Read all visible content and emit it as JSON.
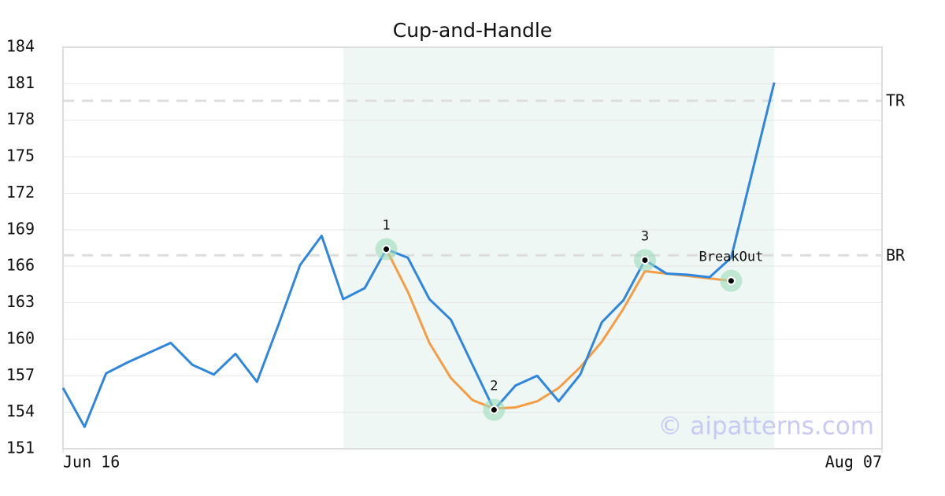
{
  "chart_data": {
    "type": "line",
    "title": "Cup-and-Handle",
    "x": [
      0,
      1,
      2,
      3,
      4,
      5,
      6,
      7,
      8,
      9,
      10,
      11,
      12,
      13,
      14,
      15,
      16,
      17,
      18,
      19,
      20,
      21,
      22,
      23,
      24,
      25,
      26,
      27,
      28,
      29,
      30,
      31,
      32,
      33
    ],
    "xlim": [
      0,
      38
    ],
    "xticks": [
      {
        "value": 0,
        "label": "Jun 16"
      },
      {
        "value": 38,
        "label": "Aug 07"
      }
    ],
    "ylim": [
      151,
      184
    ],
    "yticks": [
      151,
      154,
      157,
      160,
      163,
      166,
      169,
      172,
      175,
      178,
      181,
      184
    ],
    "grid": true,
    "series": [
      {
        "color": "#2e86de",
        "values": [
          156.0,
          152.8,
          157.2,
          158.1,
          158.9,
          159.7,
          157.9,
          157.1,
          158.8,
          156.5,
          161.2,
          166.1,
          168.5,
          163.3,
          164.2,
          167.4,
          166.7,
          163.3,
          161.6,
          157.9,
          154.2,
          156.2,
          157.0,
          154.9,
          157.1,
          161.4,
          163.2,
          166.5,
          165.4,
          165.3,
          165.1,
          166.7,
          173.9,
          181.1
        ]
      },
      {
        "color": "#f59c45",
        "values": [
          null,
          null,
          null,
          null,
          null,
          null,
          null,
          null,
          null,
          null,
          null,
          null,
          null,
          null,
          null,
          167.4,
          163.9,
          159.7,
          156.8,
          155.0,
          154.3,
          154.4,
          154.9,
          156.0,
          157.7,
          159.8,
          162.5,
          165.6,
          165.4,
          165.2,
          165.0,
          164.8,
          null,
          null
        ]
      }
    ],
    "shade": {
      "x": [
        13,
        33
      ],
      "color": "#eef7f3"
    },
    "levels": [
      {
        "label": "TR",
        "value": 179.6
      },
      {
        "label": "BR",
        "value": 166.9
      }
    ],
    "annotations": [
      {
        "label": "1",
        "x": 15,
        "value": 167.4
      },
      {
        "label": "2",
        "x": 20,
        "value": 154.2
      },
      {
        "label": "3",
        "x": 27,
        "value": 166.5
      },
      {
        "label": "BreakOut",
        "x": 31,
        "value": 164.8
      }
    ],
    "watermark": "© aipatterns.com"
  }
}
